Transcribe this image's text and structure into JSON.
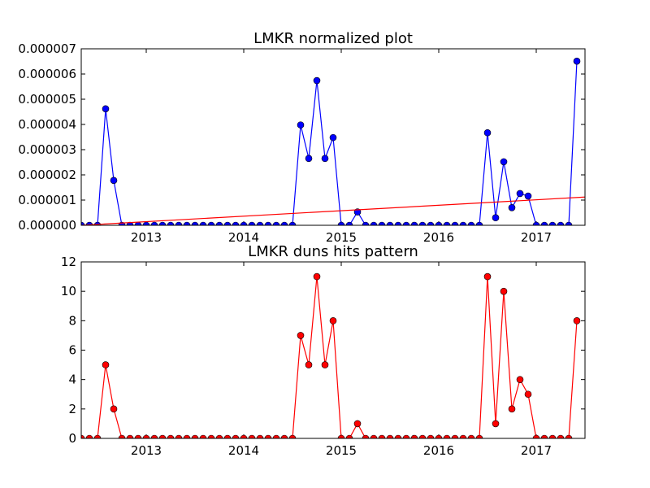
{
  "chart_data": [
    {
      "type": "line",
      "title": "LMKR normalized plot",
      "xlabel": "",
      "ylabel": "",
      "x_start": "2012-05",
      "x_interval": "month",
      "xlim": [
        "2012-05",
        "2017-07"
      ],
      "ylim": [
        0,
        7e-06
      ],
      "x_ticks": [
        {
          "label": "2013",
          "date": "2013-01"
        },
        {
          "label": "2014",
          "date": "2014-01"
        },
        {
          "label": "2015",
          "date": "2015-01"
        },
        {
          "label": "2016",
          "date": "2016-01"
        },
        {
          "label": "2017",
          "date": "2017-01"
        }
      ],
      "y_ticks": [
        0.0,
        1e-06,
        2e-06,
        3e-06,
        4e-06,
        5e-06,
        6e-06,
        7e-06
      ],
      "y_tick_labels": [
        "0.000000",
        "0.000001",
        "0.000002",
        "0.000003",
        "0.000004",
        "0.000005",
        "0.000006",
        "0.000007"
      ],
      "grid": false,
      "series": [
        {
          "color": "#0000ff",
          "marker": "circle",
          "values": [
            0,
            0,
            0,
            4.62e-06,
            1.78e-06,
            0,
            0,
            0,
            0,
            0,
            0,
            0,
            0,
            0,
            0,
            0,
            0,
            0,
            0,
            0,
            0,
            0,
            0,
            0,
            0,
            0,
            0,
            3.98e-06,
            2.65e-06,
            5.74e-06,
            2.65e-06,
            3.48e-06,
            0,
            0,
            5.3e-07,
            0,
            0,
            0,
            0,
            0,
            0,
            0,
            0,
            0,
            0,
            0,
            0,
            0,
            0,
            0,
            3.67e-06,
            3e-07,
            2.52e-06,
            7e-07,
            1.26e-06,
            1.16e-06,
            0,
            0,
            0,
            0,
            0,
            6.51e-06
          ]
        },
        {
          "color": "#ff0000",
          "marker": "none",
          "style": "trend-line",
          "x_endpoints": [
            "2012-05",
            "2017-07"
          ],
          "values": [
            0.0,
            1.12e-06
          ]
        }
      ]
    },
    {
      "type": "line",
      "title": "LMKR duns hits pattern",
      "xlabel": "",
      "ylabel": "",
      "x_start": "2012-05",
      "x_interval": "month",
      "xlim": [
        "2012-05",
        "2017-07"
      ],
      "ylim": [
        0,
        12
      ],
      "x_ticks": [
        {
          "label": "2013",
          "date": "2013-01"
        },
        {
          "label": "2014",
          "date": "2014-01"
        },
        {
          "label": "2015",
          "date": "2015-01"
        },
        {
          "label": "2016",
          "date": "2016-01"
        },
        {
          "label": "2017",
          "date": "2017-01"
        }
      ],
      "y_ticks": [
        0,
        2,
        4,
        6,
        8,
        10,
        12
      ],
      "y_tick_labels": [
        "0",
        "2",
        "4",
        "6",
        "8",
        "10",
        "12"
      ],
      "grid": false,
      "series": [
        {
          "color": "#ff0000",
          "marker": "circle",
          "values": [
            0,
            0,
            0,
            5,
            2,
            0,
            0,
            0,
            0,
            0,
            0,
            0,
            0,
            0,
            0,
            0,
            0,
            0,
            0,
            0,
            0,
            0,
            0,
            0,
            0,
            0,
            0,
            7,
            5,
            11,
            5,
            8,
            0,
            0,
            1,
            0,
            0,
            0,
            0,
            0,
            0,
            0,
            0,
            0,
            0,
            0,
            0,
            0,
            0,
            0,
            11,
            1,
            10,
            2,
            4,
            3,
            0,
            0,
            0,
            0,
            0,
            8
          ]
        }
      ]
    }
  ]
}
